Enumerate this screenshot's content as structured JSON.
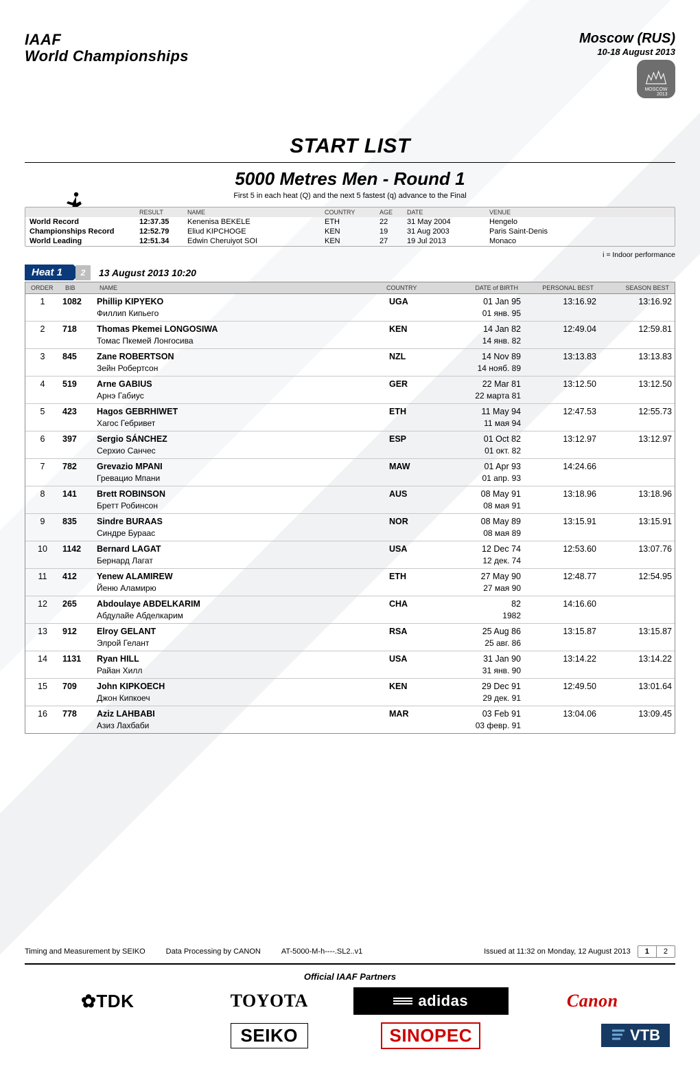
{
  "header": {
    "org1": "IAAF",
    "org2": "World Championships",
    "city": "Moscow (RUS)",
    "dates": "10-18 August 2013"
  },
  "title": {
    "main": "START LIST",
    "event": "5000 Metres Men - Round 1",
    "sub": "First 5 in each heat (Q) and the next 5 fastest (q) advance to the Final"
  },
  "records": {
    "head": {
      "result": "RESULT",
      "name": "NAME",
      "country": "COUNTRY",
      "age": "AGE",
      "date": "DATE",
      "venue": "VENUE"
    },
    "rows": [
      {
        "label": "World Record",
        "result": "12:37.35",
        "name": "Kenenisa BEKELE",
        "country": "ETH",
        "age": "22",
        "date": "31 May 2004",
        "venue": "Hengelo"
      },
      {
        "label": "Championships Record",
        "result": "12:52.79",
        "name": "Eliud KIPCHOGE",
        "country": "KEN",
        "age": "19",
        "date": "31 Aug 2003",
        "venue": "Paris Saint-Denis"
      },
      {
        "label": "World Leading",
        "result": "12:51.34",
        "name": "Edwin Cheruiyot SOI",
        "country": "KEN",
        "age": "27",
        "date": "19 Jul 2013",
        "venue": "Monaco"
      }
    ]
  },
  "notes": {
    "indoor": "i = Indoor performance"
  },
  "heat": {
    "label": "Heat 1",
    "number": "2",
    "datetime": "13 August 2013   10:20",
    "head": {
      "order": "ORDER",
      "bib": "BIB",
      "name": "NAME",
      "country": "COUNTRY",
      "dob": "DATE of BIRTH",
      "pb": "PERSONAL BEST",
      "sb": "SEASON BEST"
    },
    "athletes": [
      {
        "order": "1",
        "bib": "1082",
        "first": "Phillip",
        "last": "KIPYEKO",
        "translit": "Филлип Кипьего",
        "country": "UGA",
        "dob": "01 Jan 95",
        "dob2": "01 янв. 95",
        "pb": "13:16.92",
        "sb": "13:16.92"
      },
      {
        "order": "2",
        "bib": "718",
        "first": "Thomas Pkemei",
        "last": "LONGOSIWA",
        "translit": "Томас Пкемей Лонгосива",
        "country": "KEN",
        "dob": "14 Jan 82",
        "dob2": "14 янв. 82",
        "pb": "12:49.04",
        "sb": "12:59.81"
      },
      {
        "order": "3",
        "bib": "845",
        "first": "Zane",
        "last": "ROBERTSON",
        "translit": "Зейн Робертсон",
        "country": "NZL",
        "dob": "14 Nov 89",
        "dob2": "14 нояб. 89",
        "pb": "13:13.83",
        "sb": "13:13.83"
      },
      {
        "order": "4",
        "bib": "519",
        "first": "Arne",
        "last": "GABIUS",
        "translit": "Арнэ Габиус",
        "country": "GER",
        "dob": "22 Mar 81",
        "dob2": "22 марта 81",
        "pb": "13:12.50",
        "sb": "13:12.50"
      },
      {
        "order": "5",
        "bib": "423",
        "first": "Hagos",
        "last": "GEBRHIWET",
        "translit": "Хагос Гебривет",
        "country": "ETH",
        "dob": "11 May 94",
        "dob2": "11 мая 94",
        "pb": "12:47.53",
        "sb": "12:55.73"
      },
      {
        "order": "6",
        "bib": "397",
        "first": "Sergio",
        "last": "SÁNCHEZ",
        "translit": "Серхио Санчес",
        "country": "ESP",
        "dob": "01 Oct 82",
        "dob2": "01 окт. 82",
        "pb": "13:12.97",
        "sb": "13:12.97"
      },
      {
        "order": "7",
        "bib": "782",
        "first": "Grevazio",
        "last": "MPANI",
        "translit": "Гревацио Мпани",
        "country": "MAW",
        "dob": "01 Apr 93",
        "dob2": "01 апр. 93",
        "pb": "14:24.66",
        "sb": ""
      },
      {
        "order": "8",
        "bib": "141",
        "first": "Brett",
        "last": "ROBINSON",
        "translit": "Бретт Робинсон",
        "country": "AUS",
        "dob": "08 May 91",
        "dob2": "08 мая 91",
        "pb": "13:18.96",
        "sb": "13:18.96"
      },
      {
        "order": "9",
        "bib": "835",
        "first": "Sindre",
        "last": "BURAAS",
        "translit": "Синдре Бураас",
        "country": "NOR",
        "dob": "08 May 89",
        "dob2": "08 мая 89",
        "pb": "13:15.91",
        "sb": "13:15.91"
      },
      {
        "order": "10",
        "bib": "1142",
        "first": "Bernard",
        "last": "LAGAT",
        "translit": "Бернард Лагат",
        "country": "USA",
        "dob": "12 Dec 74",
        "dob2": "12 дек. 74",
        "pb": "12:53.60",
        "sb": "13:07.76"
      },
      {
        "order": "11",
        "bib": "412",
        "first": "Yenew",
        "last": "ALAMIREW",
        "translit": "Йеню Аламирю",
        "country": "ETH",
        "dob": "27 May 90",
        "dob2": "27 мая 90",
        "pb": "12:48.77",
        "sb": "12:54.95"
      },
      {
        "order": "12",
        "bib": "265",
        "first": "Abdoulaye",
        "last": "ABDELKARIM",
        "translit": "Абдулайе Абделкарим",
        "country": "CHA",
        "dob": "82",
        "dob2": "1982",
        "pb": "14:16.60",
        "sb": ""
      },
      {
        "order": "13",
        "bib": "912",
        "first": "Elroy",
        "last": "GELANT",
        "translit": "Элрой Гелант",
        "country": "RSA",
        "dob": "25 Aug 86",
        "dob2": "25 авг. 86",
        "pb": "13:15.87",
        "sb": "13:15.87"
      },
      {
        "order": "14",
        "bib": "1131",
        "first": "Ryan",
        "last": "HILL",
        "translit": "Райан Хилл",
        "country": "USA",
        "dob": "31 Jan 90",
        "dob2": "31 янв. 90",
        "pb": "13:14.22",
        "sb": "13:14.22"
      },
      {
        "order": "15",
        "bib": "709",
        "first": "John",
        "last": "KIPKOECH",
        "translit": "Джон Кипкоеч",
        "country": "KEN",
        "dob": "29 Dec 91",
        "dob2": "29 дек. 91",
        "pb": "12:49.50",
        "sb": "13:01.64"
      },
      {
        "order": "16",
        "bib": "778",
        "first": "Aziz",
        "last": "LAHBABI",
        "translit": "Азиз Лахбаби",
        "country": "MAR",
        "dob": "03 Feb 91",
        "dob2": "03 февр. 91",
        "pb": "13:04.06",
        "sb": "13:09.45"
      }
    ]
  },
  "footer": {
    "timing": "Timing and Measurement by SEIKO",
    "processing": "Data Processing by CANON",
    "code": "AT-5000-M-h----.SL2..v1",
    "issued": "Issued at 11:32 on Monday, 12 August 2013",
    "page_cur": "1",
    "page_tot": "2",
    "partners_label": "Official IAAF Partners"
  },
  "sponsors": [
    "✿TDK",
    "TOYOTA",
    "adidas",
    "Canon",
    "SEIKO",
    "SINOPEC",
    "VTB"
  ],
  "style": {
    "heat_tab_bg": "#0a3a7a",
    "heat_num_bg": "#bfbfbf",
    "table_border": "#8d8d8d",
    "row_border": "#c8c8c8",
    "header_bg": "#d9d9d9",
    "records_header_bg": "#e9e9e9",
    "canon_color": "#c00",
    "vtb_bg": "#173a63",
    "font_sizes": {
      "title": 30,
      "event": 26,
      "body": 12,
      "small": 9
    }
  }
}
